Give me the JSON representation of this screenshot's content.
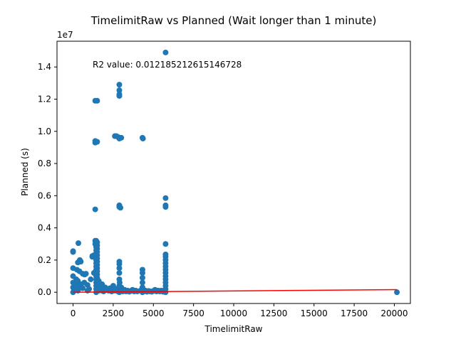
{
  "chart_data": {
    "type": "scatter",
    "title": "TimelimitRaw vs Planned (Wait longer than 1 minute)",
    "xlabel": "TimelimitRaw",
    "ylabel": "Planned (s)",
    "y_multiplier_label": "1e7",
    "annotation": "R2 value: 0.012185212615146728",
    "xlim": [
      -1000,
      21000
    ],
    "ylim": [
      -700000,
      15600000
    ],
    "xticks": [
      0,
      2500,
      5000,
      7500,
      10000,
      12500,
      15000,
      17500,
      20000
    ],
    "xtick_labels": [
      "0",
      "2500",
      "5000",
      "7500",
      "10000",
      "12500",
      "15000",
      "17500",
      "20000"
    ],
    "yticks": [
      0,
      2000000,
      4000000,
      6000000,
      8000000,
      10000000,
      12000000,
      14000000
    ],
    "ytick_labels": [
      "0.0",
      "0.2",
      "0.4",
      "0.6",
      "0.8",
      "1.0",
      "1.2",
      "1.4"
    ],
    "grid": false,
    "colors": {
      "points": "#1f77b4",
      "fit_line": "#ff0000"
    },
    "fit_line": {
      "x": [
        0,
        20160
      ],
      "y": [
        0,
        160000
      ]
    },
    "points": [
      [
        0,
        0
      ],
      [
        0,
        300000
      ],
      [
        0,
        600000
      ],
      [
        0,
        1000000
      ],
      [
        0,
        1500000
      ],
      [
        0,
        2500000
      ],
      [
        0,
        2550000
      ],
      [
        60,
        150000
      ],
      [
        120,
        300000
      ],
      [
        180,
        500000
      ],
      [
        200,
        800000
      ],
      [
        240,
        1400000
      ],
      [
        300,
        100000
      ],
      [
        300,
        700000
      ],
      [
        300,
        1850000
      ],
      [
        330,
        3050000
      ],
      [
        360,
        250000
      ],
      [
        400,
        1300000
      ],
      [
        420,
        2000000
      ],
      [
        480,
        1900000
      ],
      [
        480,
        500000
      ],
      [
        600,
        1150000
      ],
      [
        600,
        250000
      ],
      [
        700,
        600000
      ],
      [
        720,
        1100000
      ],
      [
        800,
        1150000
      ],
      [
        900,
        100000
      ],
      [
        900,
        450000
      ],
      [
        1000,
        200000
      ],
      [
        1100,
        800000
      ],
      [
        1200,
        2200000
      ],
      [
        1200,
        2250000
      ],
      [
        1300,
        1200000
      ],
      [
        1300,
        2300000
      ],
      [
        1380,
        3000000
      ],
      [
        1380,
        3200000
      ],
      [
        1380,
        9300000
      ],
      [
        1380,
        9400000
      ],
      [
        1380,
        11900000
      ],
      [
        1380,
        5150000
      ],
      [
        1440,
        0
      ],
      [
        1440,
        200000
      ],
      [
        1440,
        400000
      ],
      [
        1440,
        600000
      ],
      [
        1440,
        800000
      ],
      [
        1440,
        1000000
      ],
      [
        1440,
        1200000
      ],
      [
        1440,
        1400000
      ],
      [
        1440,
        1600000
      ],
      [
        1440,
        1800000
      ],
      [
        1440,
        2000000
      ],
      [
        1440,
        2200000
      ],
      [
        1440,
        2400000
      ],
      [
        1440,
        2600000
      ],
      [
        1440,
        2800000
      ],
      [
        1440,
        3000000
      ],
      [
        1440,
        3200000
      ],
      [
        1500,
        100000
      ],
      [
        1500,
        300000
      ],
      [
        1500,
        500000
      ],
      [
        1500,
        700000
      ],
      [
        1500,
        900000
      ],
      [
        1500,
        1100000
      ],
      [
        1500,
        1300000
      ],
      [
        1500,
        1500000
      ],
      [
        1500,
        1700000
      ],
      [
        1500,
        1900000
      ],
      [
        1500,
        2100000
      ],
      [
        1500,
        2300000
      ],
      [
        1500,
        2500000
      ],
      [
        1500,
        2700000
      ],
      [
        1500,
        2900000
      ],
      [
        1500,
        3100000
      ],
      [
        1500,
        9350000
      ],
      [
        1500,
        11900000
      ],
      [
        1600,
        100000
      ],
      [
        1600,
        400000
      ],
      [
        1600,
        700000
      ],
      [
        1700,
        200000
      ],
      [
        1800,
        500000
      ],
      [
        1800,
        100000
      ],
      [
        1900,
        50000
      ],
      [
        2000,
        300000
      ],
      [
        2100,
        150000
      ],
      [
        2200,
        100000
      ],
      [
        2300,
        250000
      ],
      [
        2400,
        50000
      ],
      [
        2500,
        400000
      ],
      [
        2600,
        100000
      ],
      [
        2600,
        9700000
      ],
      [
        2700,
        9700000
      ],
      [
        2700,
        200000
      ],
      [
        2800,
        50000
      ],
      [
        2800,
        9650000
      ],
      [
        2880,
        0
      ],
      [
        2880,
        200000
      ],
      [
        2880,
        400000
      ],
      [
        2880,
        800000
      ],
      [
        2880,
        1200000
      ],
      [
        2880,
        1500000
      ],
      [
        2880,
        1750000
      ],
      [
        2880,
        1900000
      ],
      [
        2880,
        5350000
      ],
      [
        2880,
        5400000
      ],
      [
        2880,
        5300000
      ],
      [
        2880,
        9600000
      ],
      [
        2880,
        12200000
      ],
      [
        2880,
        12300000
      ],
      [
        2880,
        12550000
      ],
      [
        2880,
        12900000
      ],
      [
        2880,
        9550000
      ],
      [
        2900,
        600000
      ],
      [
        2950,
        5250000
      ],
      [
        3000,
        9600000
      ],
      [
        3000,
        100000
      ],
      [
        3000,
        300000
      ],
      [
        3100,
        50000
      ],
      [
        3200,
        150000
      ],
      [
        3300,
        50000
      ],
      [
        3400,
        100000
      ],
      [
        3500,
        30000
      ],
      [
        3600,
        80000
      ],
      [
        3700,
        150000
      ],
      [
        3800,
        50000
      ],
      [
        3900,
        100000
      ],
      [
        4000,
        50000
      ],
      [
        4200,
        100000
      ],
      [
        4320,
        0
      ],
      [
        4320,
        300000
      ],
      [
        4320,
        600000
      ],
      [
        4320,
        900000
      ],
      [
        4320,
        1200000
      ],
      [
        4320,
        1400000
      ],
      [
        4320,
        9600000
      ],
      [
        4350,
        9550000
      ],
      [
        4400,
        50000
      ],
      [
        4500,
        100000
      ],
      [
        4600,
        30000
      ],
      [
        4700,
        80000
      ],
      [
        4800,
        50000
      ],
      [
        4900,
        30000
      ],
      [
        5000,
        80000
      ],
      [
        5100,
        150000
      ],
      [
        5200,
        50000
      ],
      [
        5300,
        100000
      ],
      [
        5400,
        50000
      ],
      [
        5500,
        100000
      ],
      [
        5600,
        30000
      ],
      [
        5760,
        0
      ],
      [
        5760,
        200000
      ],
      [
        5760,
        400000
      ],
      [
        5760,
        600000
      ],
      [
        5760,
        800000
      ],
      [
        5760,
        1000000
      ],
      [
        5760,
        1200000
      ],
      [
        5760,
        1400000
      ],
      [
        5760,
        1600000
      ],
      [
        5760,
        1800000
      ],
      [
        5760,
        2000000
      ],
      [
        5760,
        2200000
      ],
      [
        5760,
        2350000
      ],
      [
        5760,
        3000000
      ],
      [
        5760,
        5300000
      ],
      [
        5760,
        5400000
      ],
      [
        5760,
        5850000
      ],
      [
        5760,
        14900000
      ],
      [
        20160,
        0
      ]
    ]
  }
}
